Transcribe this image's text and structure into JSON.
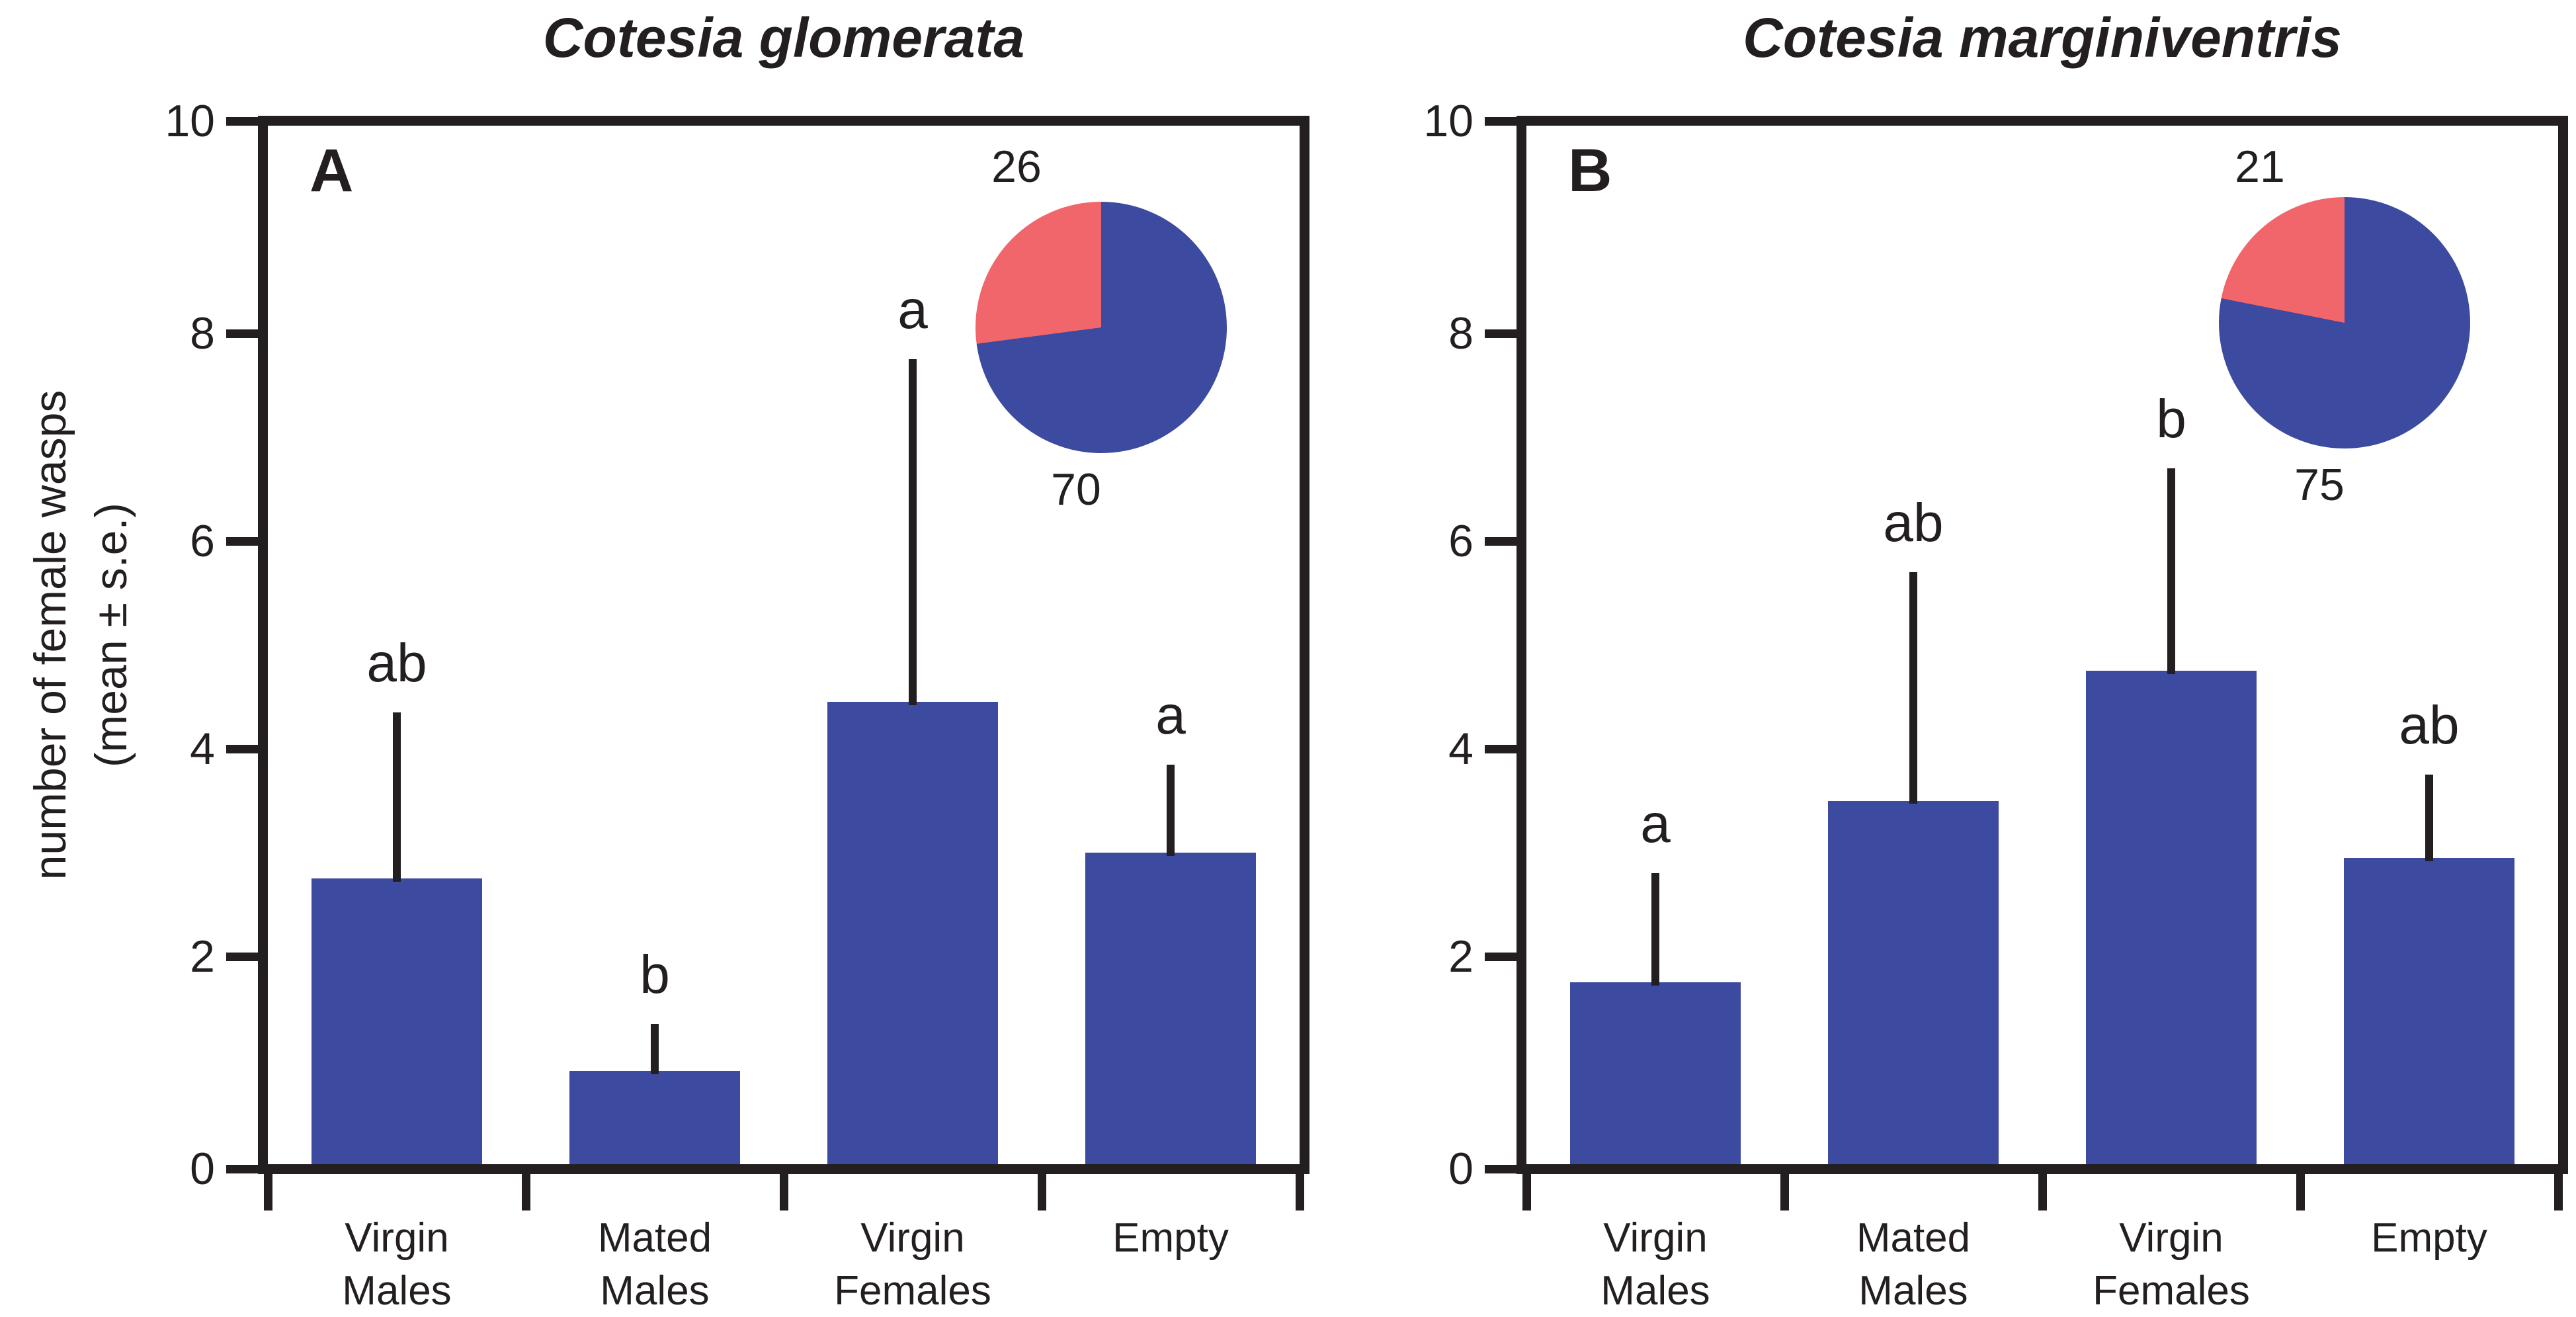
{
  "figure": {
    "y_axis_label_line1": "number of female wasps",
    "y_axis_label_line2": "(mean ± s.e.)"
  },
  "colors": {
    "bar_blue": "#3c4aa0",
    "pie_blue": "#3c4aa0",
    "pie_red": "#f0666b",
    "axis_black": "#231f20"
  },
  "chart_data": [
    {
      "type": "bar",
      "panel_label": "A",
      "title": "Cotesia glomerata",
      "categories": [
        [
          "Virgin",
          "Males"
        ],
        [
          "Mated",
          "Males"
        ],
        [
          "Virgin",
          "Females"
        ],
        [
          "Empty"
        ]
      ],
      "values": [
        2.75,
        0.9,
        4.45,
        3.0
      ],
      "errors_upper": [
        1.6,
        0.45,
        3.3,
        0.85
      ],
      "sig_letters": [
        "ab",
        "b",
        "a",
        "a"
      ],
      "ylim": [
        0,
        10
      ],
      "yticks": [
        0,
        2,
        4,
        6,
        8,
        10
      ],
      "grid": "off",
      "inset_pie": {
        "type": "pie",
        "slices": [
          {
            "label": "70",
            "value": 70,
            "color_key": "pie_blue",
            "position": "bottom"
          },
          {
            "label": "26",
            "value": 26,
            "color_key": "pie_red",
            "position": "top"
          }
        ]
      }
    },
    {
      "type": "bar",
      "panel_label": "B",
      "title": "Cotesia marginiventris",
      "categories": [
        [
          "Virgin",
          "Males"
        ],
        [
          "Mated",
          "Males"
        ],
        [
          "Virgin",
          "Females"
        ],
        [
          "Empty"
        ]
      ],
      "values": [
        1.75,
        3.5,
        4.75,
        2.95
      ],
      "errors_upper": [
        1.05,
        2.2,
        1.95,
        0.8
      ],
      "sig_letters": [
        "a",
        "ab",
        "b",
        "ab"
      ],
      "ylim": [
        0,
        10
      ],
      "yticks": [
        0,
        2,
        4,
        6,
        8,
        10
      ],
      "grid": "off",
      "inset_pie": {
        "type": "pie",
        "slices": [
          {
            "label": "75",
            "value": 75,
            "color_key": "pie_blue",
            "position": "bottom"
          },
          {
            "label": "21",
            "value": 21,
            "color_key": "pie_red",
            "position": "top"
          }
        ]
      }
    }
  ]
}
